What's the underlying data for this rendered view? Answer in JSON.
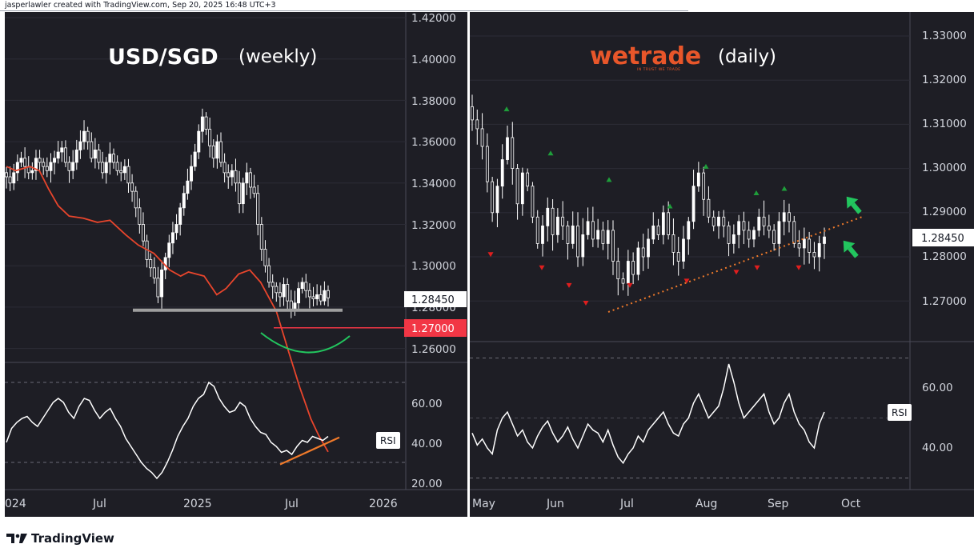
{
  "header": {
    "credit": "jasperlawler created with TradingView.com, Sep 20, 2025 16:48 UTC+3"
  },
  "footer": {
    "brand": "TradingView"
  },
  "colors": {
    "background": "#1e1e25",
    "grid": "#2c2c36",
    "candle": "#ffffff",
    "ma": "#e8452c",
    "support": "#9e9e9e",
    "level": "#f23645",
    "curve": "#22c55e",
    "trend": "#f07a2a",
    "arrow_up": "#22c55e",
    "text": "#d1d4dc",
    "wetrade_brand": "#e8562a"
  },
  "left_chart": {
    "title": "USD/SGD",
    "subtitle": "(weekly)",
    "rsi_label": "RSI",
    "price_ticks": [
      "1.42000",
      "1.40000",
      "1.38000",
      "1.36000",
      "1.34000",
      "1.32000",
      "1.30000",
      "1.28000",
      "1.26000"
    ],
    "rsi_ticks": [
      "60.00",
      "40.00",
      "20.00"
    ],
    "time_ticks": [
      "024",
      "Jul",
      "2025",
      "Jul",
      "2026"
    ],
    "last_price_badge": "1.28450",
    "level_badge": "1.27000"
  },
  "right_chart": {
    "brand": "wetrade",
    "brand_tagline": "IN TRUST WE TRADE",
    "subtitle": "(daily)",
    "rsi_label": "RSI",
    "price_ticks": [
      "1.33000",
      "1.32000",
      "1.31000",
      "1.30000",
      "1.29000",
      "1.28000",
      "1.27000"
    ],
    "rsi_ticks": [
      "60.00",
      "40.00"
    ],
    "time_ticks": [
      "May",
      "Jun",
      "Jul",
      "Aug",
      "Sep",
      "Oct"
    ],
    "last_price_badge": "1.28450"
  },
  "chart_data": [
    {
      "type": "candlestick",
      "title": "USD/SGD",
      "subtitle": "(weekly)",
      "ylim": [
        1.255,
        1.425
      ],
      "x_ticks": [
        "024",
        "Jul",
        "2025",
        "Jul",
        "2026"
      ],
      "close": [
        1.343,
        1.34,
        1.345,
        1.35,
        1.352,
        1.348,
        1.345,
        1.346,
        1.352,
        1.35,
        1.348,
        1.346,
        1.35,
        1.352,
        1.355,
        1.357,
        1.35,
        1.346,
        1.35,
        1.356,
        1.36,
        1.365,
        1.36,
        1.352,
        1.356,
        1.35,
        1.345,
        1.35,
        1.354,
        1.35,
        1.346,
        1.345,
        1.348,
        1.34,
        1.336,
        1.328,
        1.32,
        1.312,
        1.303,
        1.299,
        1.294,
        1.285,
        1.298,
        1.304,
        1.311,
        1.316,
        1.32,
        1.328,
        1.335,
        1.341,
        1.348,
        1.355,
        1.365,
        1.372,
        1.366,
        1.358,
        1.352,
        1.36,
        1.35,
        1.345,
        1.343,
        1.346,
        1.34,
        1.33,
        1.34,
        1.345,
        1.338,
        1.335,
        1.32,
        1.308,
        1.3,
        1.292,
        1.29,
        1.287,
        1.285,
        1.291,
        1.283,
        1.279,
        1.282,
        1.289,
        1.292,
        1.288,
        1.285,
        1.284,
        1.286,
        1.283,
        1.288,
        1.2845
      ],
      "ma_points": [
        [
          0,
          1.348
        ],
        [
          12,
          1.346
        ],
        [
          30,
          1.348
        ],
        [
          42,
          1.346
        ],
        [
          54,
          1.337
        ],
        [
          66,
          1.329
        ],
        [
          80,
          1.324
        ],
        [
          98,
          1.323
        ],
        [
          116,
          1.321
        ],
        [
          132,
          1.322
        ],
        [
          152,
          1.315
        ],
        [
          168,
          1.31
        ],
        [
          188,
          1.306
        ],
        [
          208,
          1.298
        ],
        [
          222,
          1.295
        ],
        [
          232,
          1.297
        ],
        [
          252,
          1.295
        ],
        [
          268,
          1.286
        ],
        [
          280,
          1.289
        ],
        [
          296,
          1.296
        ],
        [
          310,
          1.298
        ],
        [
          324,
          1.292
        ],
        [
          344,
          1.278
        ],
        [
          360,
          1.258
        ],
        [
          374,
          1.241
        ],
        [
          388,
          1.226
        ],
        [
          398,
          1.218
        ],
        [
          410,
          1.21
        ]
      ],
      "rsi": [
        40,
        47,
        50,
        52,
        53,
        50,
        48,
        52,
        56,
        60,
        62,
        60,
        55,
        52,
        58,
        62,
        61,
        56,
        52,
        55,
        57,
        52,
        48,
        42,
        38,
        34,
        30,
        27,
        25,
        22,
        25,
        30,
        36,
        43,
        48,
        52,
        58,
        62,
        64,
        70,
        68,
        62,
        58,
        55,
        56,
        60,
        58,
        52,
        48,
        45,
        44,
        40,
        38,
        35,
        36,
        34,
        38,
        41,
        40,
        43,
        42,
        41,
        43
      ],
      "rsi_ylim": [
        15,
        75
      ],
      "rsi_guides": [
        70,
        30
      ],
      "last_price": 1.2845,
      "support_level": 1.2785,
      "target_level": 1.27,
      "annotations": [
        "horizontal support line near 1.2785",
        "red level line at 1.27000",
        "green rounding curve below price",
        "orange rising RSI trendline"
      ]
    },
    {
      "type": "candlestick",
      "title": "wetrade",
      "subtitle": "(daily)",
      "ylim": [
        1.265,
        1.335
      ],
      "x_ticks": [
        "May",
        "Jun",
        "Jul",
        "Aug",
        "Sep",
        "Oct"
      ],
      "close": [
        1.311,
        1.309,
        1.305,
        1.297,
        1.29,
        1.296,
        1.302,
        1.307,
        1.3,
        1.292,
        1.299,
        1.296,
        1.289,
        1.283,
        1.287,
        1.291,
        1.285,
        1.289,
        1.287,
        1.283,
        1.287,
        1.28,
        1.285,
        1.288,
        1.284,
        1.286,
        1.283,
        1.286,
        1.279,
        1.275,
        1.274,
        1.279,
        1.276,
        1.282,
        1.28,
        1.284,
        1.287,
        1.285,
        1.29,
        1.285,
        1.281,
        1.279,
        1.284,
        1.288,
        1.296,
        1.299,
        1.293,
        1.289,
        1.287,
        1.289,
        1.287,
        1.283,
        1.285,
        1.288,
        1.286,
        1.284,
        1.286,
        1.289,
        1.287,
        1.286,
        1.283,
        1.288,
        1.29,
        1.288,
        1.283,
        1.282,
        1.284,
        1.281,
        1.28,
        1.283,
        1.2845
      ],
      "pivot_highs": [
        1.3135,
        1.3035,
        1.2975,
        1.2915,
        1.3005,
        1.2945,
        1.2955
      ],
      "pivot_lows": [
        1.2805,
        1.2775,
        1.2735,
        1.2695,
        1.2735,
        1.2745,
        1.2765,
        1.2775,
        1.2775
      ],
      "rsi": [
        45,
        41,
        43,
        40,
        38,
        46,
        50,
        52,
        48,
        44,
        46,
        42,
        40,
        44,
        47,
        49,
        45,
        42,
        44,
        47,
        43,
        40,
        44,
        48,
        46,
        45,
        42,
        46,
        41,
        37,
        35,
        38,
        40,
        44,
        42,
        46,
        48,
        50,
        52,
        48,
        45,
        44,
        48,
        50,
        55,
        58,
        54,
        50,
        52,
        54,
        60,
        68,
        62,
        55,
        50,
        52,
        54,
        56,
        58,
        52,
        48,
        50,
        55,
        58,
        52,
        48,
        46,
        42,
        40,
        48,
        52
      ],
      "rsi_ylim": [
        28,
        72
      ],
      "rsi_guides": [
        70,
        30
      ],
      "last_price": 1.2845,
      "trendline": [
        [
          0,
          1.2705
        ],
        [
          70,
          1.2845
        ]
      ],
      "projection": [
        [
          62,
          1.2835
        ],
        [
          78,
          1.2885
        ]
      ]
    }
  ]
}
